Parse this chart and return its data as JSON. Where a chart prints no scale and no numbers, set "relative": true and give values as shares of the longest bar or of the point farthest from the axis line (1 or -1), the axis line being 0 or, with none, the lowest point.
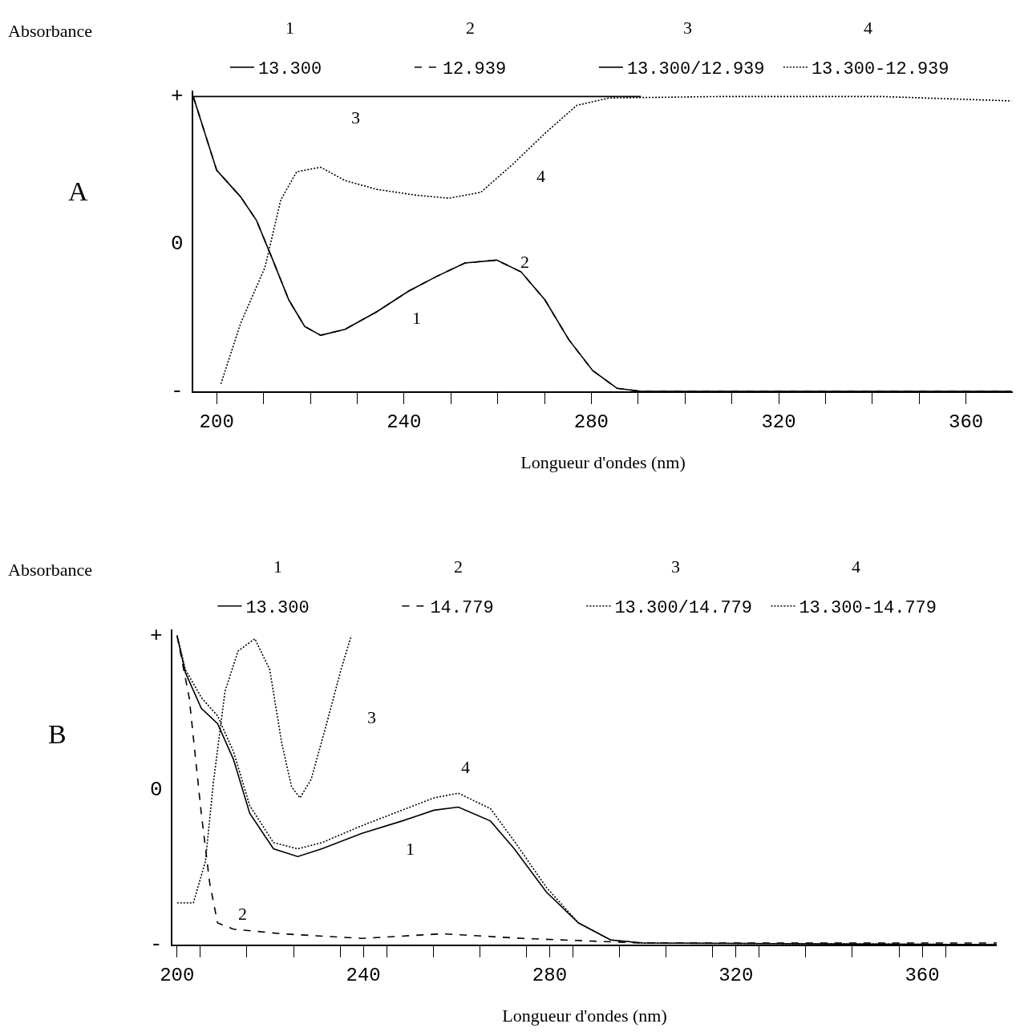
{
  "chart_data": [
    {
      "type": "line",
      "relative": true,
      "ylabel": "Absorbance",
      "xlabel": "Longueur d'ondes (nm)",
      "legend": "top",
      "grid": false,
      "marker": "none",
      "annotations": [
        "A",
        "1",
        "2",
        "3",
        "4",
        "+",
        "0",
        "-",
        "3",
        "4",
        "2",
        "1"
      ],
      "xlim": [
        195,
        370
      ],
      "xticks": [
        200,
        {
          "value": 210,
          "label": null
        },
        {
          "value": 220,
          "label": null
        },
        {
          "value": 230,
          "label": null
        },
        240,
        {
          "value": 250,
          "label": null
        },
        {
          "value": 260,
          "label": null
        },
        {
          "value": 270,
          "label": null
        },
        280,
        {
          "value": 290,
          "label": null
        },
        {
          "value": 300,
          "label": null
        },
        {
          "value": 310,
          "label": null
        },
        320,
        {
          "value": 330,
          "label": null
        },
        {
          "value": 340,
          "label": null
        },
        {
          "value": 350,
          "label": null
        },
        360
      ],
      "series": [
        {
          "name": "13.300",
          "color": "#000000",
          "line_style": "solid",
          "x": [
            195,
            200,
            205.1,
            208.5,
            212,
            215.4,
            218.8,
            222.2,
            227.4,
            234.2,
            241,
            247,
            253,
            259.8,
            265,
            270.1,
            275.2,
            280.3,
            285.5,
            290.6,
            369.7
          ],
          "values": [
            1,
            0.75,
            0.66,
            0.58,
            0.445,
            0.31,
            0.22,
            0.19,
            0.21,
            0.27,
            0.34,
            0.39,
            0.435,
            0.445,
            0.405,
            0.31,
            0.175,
            0.07,
            0.01,
            0,
            0
          ]
        },
        {
          "name": "12.939",
          "color": "#000000",
          "line_style": "dashed",
          "x": [
            195,
            200,
            205.1,
            208.5,
            212,
            215.4,
            218.8,
            222.2,
            227.4,
            234.2,
            241,
            247,
            253,
            259.8,
            265,
            270.1,
            275.2,
            280.3,
            285.5,
            290.6,
            369.7
          ],
          "values": [
            1,
            0.75,
            0.66,
            0.58,
            0.445,
            0.31,
            0.22,
            0.19,
            0.21,
            0.27,
            0.34,
            0.39,
            0.435,
            0.445,
            0.405,
            0.31,
            0.175,
            0.07,
            0.01,
            0,
            0
          ]
        },
        {
          "name": "13.300/12.939",
          "color": "#000000",
          "line_style": "solid",
          "x": [
            195,
            290.6
          ],
          "values": [
            1,
            1
          ]
        },
        {
          "name": "13.300-12.939",
          "color": "#000000",
          "line_style": "dotted",
          "x": [
            200.9,
            205.1,
            210.3,
            213.7,
            217.1,
            222.2,
            227.4,
            234.2,
            242.7,
            249.6,
            256.4,
            263.2,
            270.1,
            276.9,
            283.8,
            307.7,
            341.9,
            369.7
          ],
          "values": [
            0.025,
            0.23,
            0.42,
            0.65,
            0.745,
            0.76,
            0.715,
            0.685,
            0.665,
            0.655,
            0.675,
            0.77,
            0.875,
            0.97,
            0.995,
            1,
            1,
            0.985
          ]
        }
      ]
    },
    {
      "type": "line",
      "relative": true,
      "ylabel": "Absorbance",
      "xlabel": "Longueur d'ondes (nm)",
      "legend": "top",
      "grid": false,
      "marker": "none",
      "annotations": [
        "B",
        "1",
        "2",
        "3",
        "4",
        "+",
        "0",
        "-",
        "3",
        "4",
        "1",
        "2"
      ],
      "xlim": [
        199,
        376
      ],
      "xticks": [
        200,
        {
          "value": 205,
          "label": null
        },
        {
          "value": 215,
          "label": null
        },
        {
          "value": 225,
          "label": null
        },
        {
          "value": 235,
          "label": null
        },
        240,
        {
          "value": 245,
          "label": null
        },
        {
          "value": 255,
          "label": null
        },
        {
          "value": 265,
          "label": null
        },
        {
          "value": 275,
          "label": null
        },
        280,
        {
          "value": 285,
          "label": null
        },
        {
          "value": 295,
          "label": null
        },
        {
          "value": 305,
          "label": null
        },
        {
          "value": 315,
          "label": null
        },
        320,
        {
          "value": 325,
          "label": null
        },
        {
          "value": 335,
          "label": null
        },
        {
          "value": 345,
          "label": null
        },
        {
          "value": 355,
          "label": null
        },
        360,
        {
          "value": 365,
          "label": null
        }
      ],
      "series": [
        {
          "name": "13.300",
          "color": "#000000",
          "line_style": "solid",
          "x": [
            200,
            201.8,
            205.2,
            208.7,
            212.1,
            215.6,
            220.7,
            225.9,
            231.1,
            239.7,
            248.3,
            255.2,
            260.4,
            267.3,
            272.4,
            279.3,
            286.2,
            293.1,
            300,
            376
          ],
          "values": [
            1,
            0.88,
            0.765,
            0.715,
            0.6,
            0.425,
            0.31,
            0.285,
            0.31,
            0.36,
            0.4,
            0.435,
            0.445,
            0.4,
            0.31,
            0.17,
            0.07,
            0.015,
            0.005,
            0
          ]
        },
        {
          "name": "14.779",
          "color": "#000000",
          "line_style": "dashed",
          "x": [
            200,
            202.6,
            205.2,
            207,
            208.7,
            212.1,
            222.5,
            239.7,
            257,
            274.2,
            300,
            376
          ],
          "values": [
            1,
            0.8,
            0.425,
            0.2,
            0.07,
            0.05,
            0.035,
            0.02,
            0.035,
            0.02,
            0.005,
            0.005
          ]
        },
        {
          "name": "13.300/14.779",
          "color": "#000000",
          "line_style": "dotted",
          "x": [
            200,
            203.5,
            206.1,
            207.8,
            210.3,
            213.1,
            216.7,
            219.9,
            222.5,
            224.6,
            226.4,
            228.8,
            232.2,
            235.2,
            237.4
          ],
          "values": [
            0.135,
            0.135,
            0.27,
            0.525,
            0.82,
            0.95,
            0.99,
            0.89,
            0.65,
            0.51,
            0.475,
            0.535,
            0.72,
            0.89,
            1
          ]
        },
        {
          "name": "13.300-14.779",
          "color": "#000000",
          "line_style": "dotted",
          "x": [
            200,
            201.8,
            205.2,
            208.7,
            212.1,
            215.6,
            220.7,
            225.9,
            231.1,
            239.7,
            248.3,
            255.2,
            260.4,
            267.3,
            272.4,
            279.3,
            286.2,
            293.1,
            300,
            376
          ],
          "values": [
            1,
            0.89,
            0.8,
            0.74,
            0.625,
            0.45,
            0.33,
            0.31,
            0.33,
            0.385,
            0.435,
            0.475,
            0.49,
            0.44,
            0.335,
            0.185,
            0.07,
            0.015,
            0.005,
            0
          ]
        }
      ]
    }
  ]
}
